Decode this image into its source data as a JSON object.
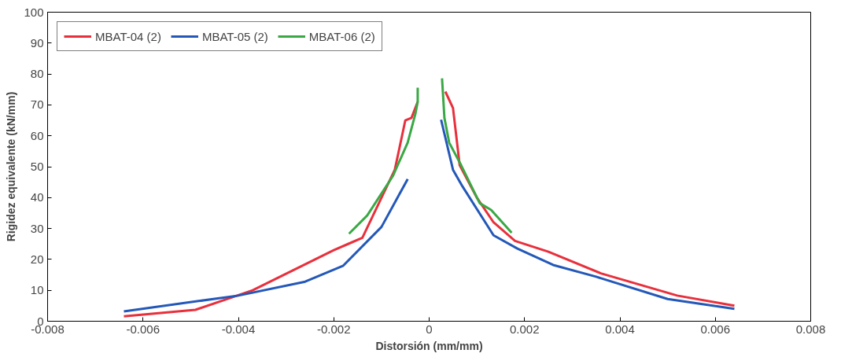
{
  "chart_data": {
    "type": "line",
    "xlabel": "Distorsión (mm/mm)",
    "ylabel": "Rigidez equivalente (kN/mm)",
    "xlim": [
      -0.008,
      0.008
    ],
    "xticks": [
      -0.008,
      -0.006,
      -0.004,
      -0.002,
      0,
      0.002,
      0.004,
      0.006,
      0.008
    ],
    "ylim": [
      0,
      100
    ],
    "yticks": [
      0,
      10,
      20,
      30,
      40,
      50,
      60,
      70,
      80,
      90,
      100
    ],
    "grid": false,
    "legend": "top left",
    "marker": "none",
    "line_style": "solid",
    "series": [
      {
        "name": "MBAT-04 (2)",
        "color": "#e8303c",
        "x": [
          -0.0064,
          -0.0049,
          -0.0037,
          -0.002,
          -0.0017,
          -0.0014,
          -0.00072,
          -0.0005,
          -0.00037,
          -0.00029,
          -0.00024,
          null,
          0.00034,
          0.0005,
          0.00064,
          0.001,
          0.00135,
          0.0018,
          0.0025,
          0.0036,
          0.0052,
          0.0064
        ],
        "values": [
          1.6,
          3.7,
          10,
          23,
          25,
          27,
          49,
          65,
          65.8,
          69,
          71,
          null,
          74.3,
          69,
          50.5,
          40,
          32,
          26,
          22.5,
          15.5,
          8.3,
          5
        ]
      },
      {
        "name": "MBAT-05 (2)",
        "color": "#2458b8",
        "x": [
          -0.0064,
          -0.004,
          -0.0026,
          -0.0018,
          -0.001,
          -0.00045,
          null,
          0.00025,
          0.0005,
          0.0007,
          0.00135,
          0.00185,
          0.0026,
          0.0035,
          0.005,
          0.0064
        ],
        "values": [
          3.2,
          8.3,
          12.8,
          18,
          30.5,
          46,
          null,
          65.2,
          49,
          43.6,
          27.8,
          23.5,
          18.2,
          14.4,
          7.2,
          4
        ]
      },
      {
        "name": "MBAT-06 (2)",
        "color": "#3aa845",
        "x": [
          -0.00168,
          -0.0013,
          -0.00076,
          -0.00045,
          -0.00029,
          -0.00024,
          -0.00024,
          null,
          0.00027,
          0.00032,
          0.00042,
          0.00067,
          0.00106,
          0.0013,
          0.00173
        ],
        "values": [
          28.3,
          34.2,
          47,
          57.8,
          67,
          71,
          75.6,
          null,
          78.6,
          65.8,
          57.8,
          50.5,
          38.2,
          36,
          28.6
        ]
      }
    ]
  }
}
